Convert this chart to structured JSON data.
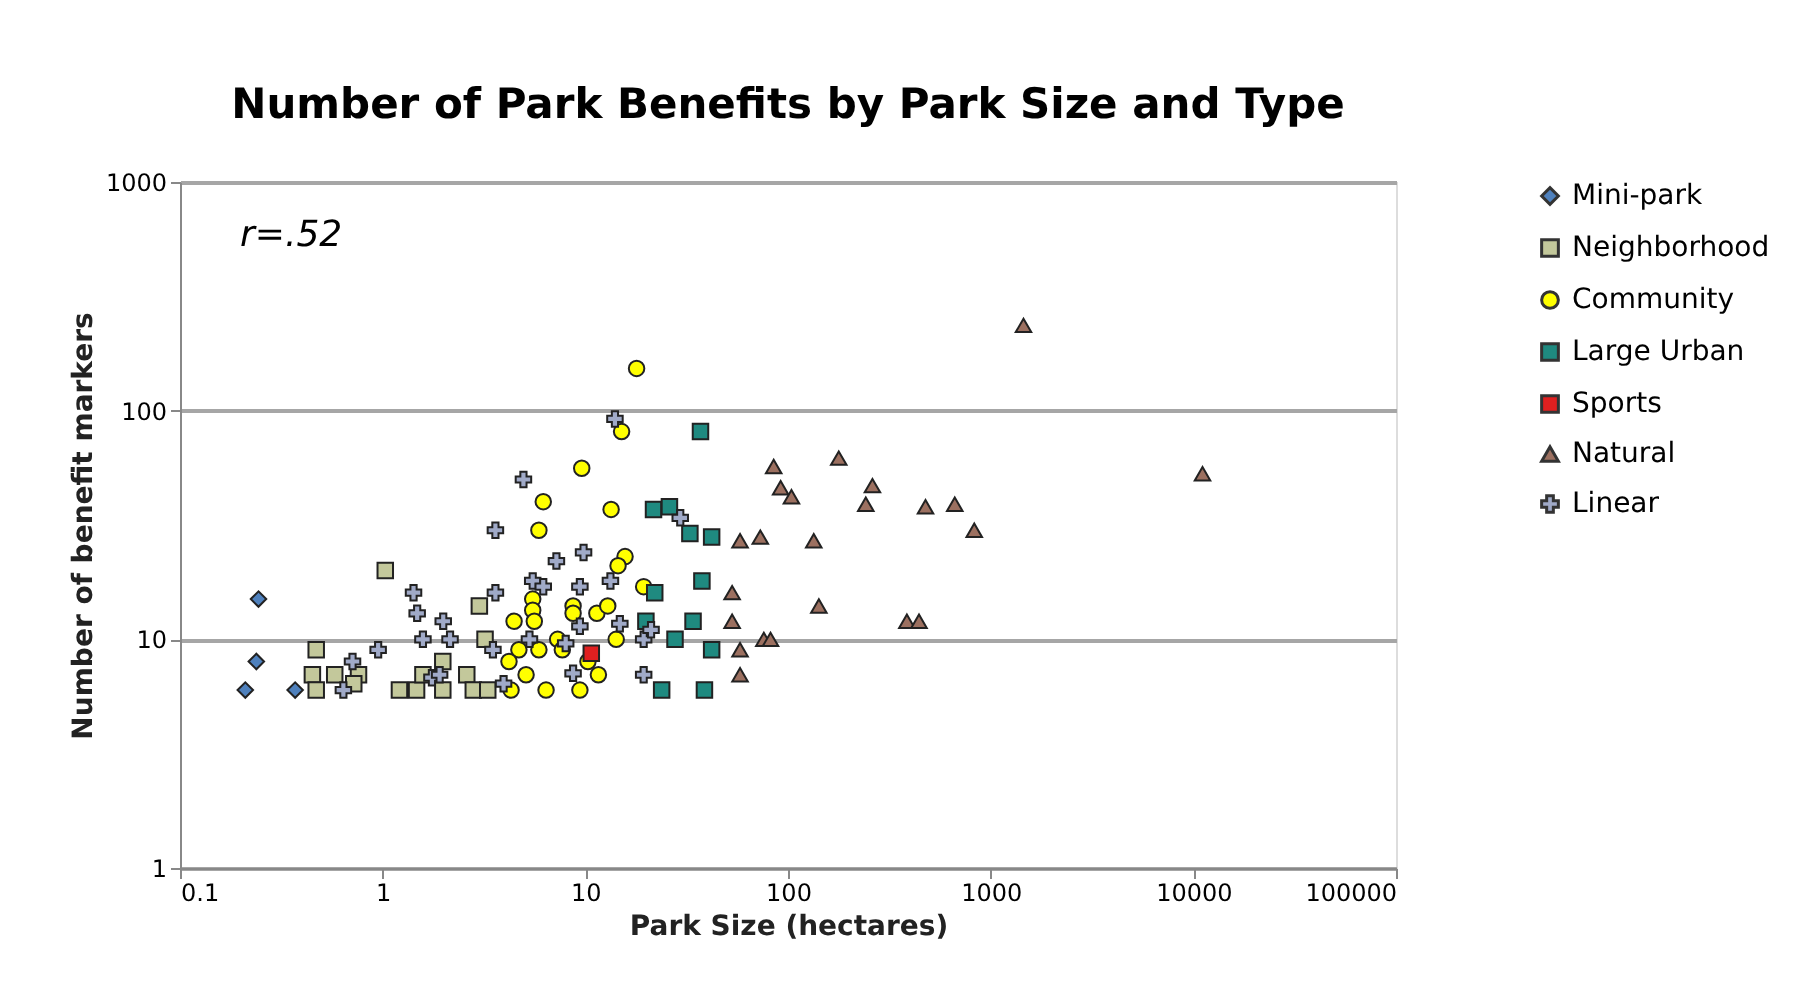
{
  "chart_data": {
    "type": "scatter",
    "title": "Number of Park Benefits by Park Size and Type",
    "xlabel": "Park Size (hectares)",
    "ylabel": "Number of benefit markers",
    "annotations": [
      "r=.52"
    ],
    "log": "xy",
    "grid": "y",
    "legend": "right",
    "xlim": [
      0.1,
      100000
    ],
    "ylim": [
      1,
      1000
    ],
    "xticks": [
      0.1,
      1,
      10,
      100,
      1000,
      10000,
      100000
    ],
    "yticks": [
      1,
      10,
      100,
      1000
    ],
    "series": [
      {
        "name": "Mini-park",
        "color": "#4f81bd",
        "marker": "diamond",
        "x": [
          0.244,
          0.238,
          0.21,
          0.37
        ],
        "values": [
          15,
          8,
          6,
          6
        ]
      },
      {
        "name": "Neighborhood",
        "color": "#c3c89b",
        "marker": "square",
        "x": [
          1.03,
          0.47,
          0.45,
          0.47,
          0.58,
          0.76,
          0.72,
          1.21,
          1.47,
          1.98,
          1.98,
          2.6,
          2.8,
          3.3,
          3.0,
          3.2,
          1.58
        ],
        "values": [
          20,
          9,
          7,
          6,
          7,
          7,
          6.4,
          6,
          6,
          8,
          6,
          7,
          6,
          6,
          14,
          10,
          7
        ]
      },
      {
        "name": "Community",
        "color": "#ffff00",
        "marker": "circle",
        "x": [
          17.9,
          15.1,
          9.6,
          6.2,
          5.9,
          13.4,
          15.7,
          14.5,
          19.4,
          8.7,
          11.4,
          12.9,
          8.7,
          5.5,
          5.5,
          5.6,
          4.45,
          14.2,
          7.3,
          7.7,
          4.7,
          5.9,
          4.2,
          5.1,
          11.6,
          4.3,
          6.4,
          9.4,
          10.3
        ],
        "values": [
          153,
          81,
          56,
          40,
          30,
          37,
          23,
          21,
          17,
          14,
          13,
          14,
          13,
          15,
          13.4,
          12,
          12,
          10,
          10,
          9,
          9,
          9,
          8,
          7,
          7,
          6,
          6,
          6,
          8
        ]
      },
      {
        "name": "Large Urban",
        "color": "#1f8a80",
        "marker": "square",
        "x": [
          37,
          21.7,
          26,
          32.8,
          42,
          22,
          37.6,
          19.9,
          34,
          27.7,
          42,
          23.8,
          38.7
        ],
        "values": [
          81,
          37,
          38,
          29,
          28,
          16,
          18,
          12,
          12,
          10,
          9,
          6,
          6
        ]
      },
      {
        "name": "Sports",
        "color": "#e02020",
        "marker": "square",
        "x": [
          10.7
        ],
        "values": [
          8.7
        ]
      },
      {
        "name": "Natural",
        "color": "#9c7060",
        "marker": "triangle",
        "x": [
          1452,
          85,
          178,
          92,
          104,
          261,
          242,
          477,
          665,
          830,
          11100,
          58,
          73,
          134,
          53,
          142,
          53,
          386,
          443,
          76,
          82,
          58,
          58
        ],
        "values": [
          236,
          57,
          62,
          46,
          42,
          47,
          39,
          38,
          39,
          30,
          53,
          27,
          28,
          27,
          16,
          14,
          12,
          12,
          12,
          10,
          10,
          9,
          7
        ]
      },
      {
        "name": "Linear",
        "color": "#a0aac8",
        "marker": "cross",
        "x": [
          4.95,
          3.6,
          1.42,
          1.48,
          1.99,
          3.6,
          2.15,
          1.58,
          0.95,
          0.71,
          0.64,
          1.75,
          1.91,
          3.95,
          3.5,
          5.5,
          14,
          7.2,
          9.8,
          6.2,
          9.4,
          13.3,
          29.4,
          9.4,
          14.8,
          19.4,
          19.4,
          8.7,
          21.1,
          8,
          5.3
        ],
        "values": [
          50,
          30,
          16,
          13,
          12,
          16,
          10,
          10,
          9,
          8,
          6,
          6.8,
          7,
          6.4,
          9,
          18,
          92,
          22,
          24,
          17,
          17,
          18,
          34,
          11.4,
          11.7,
          10,
          7,
          7.1,
          11,
          9.6,
          10
        ]
      }
    ]
  }
}
